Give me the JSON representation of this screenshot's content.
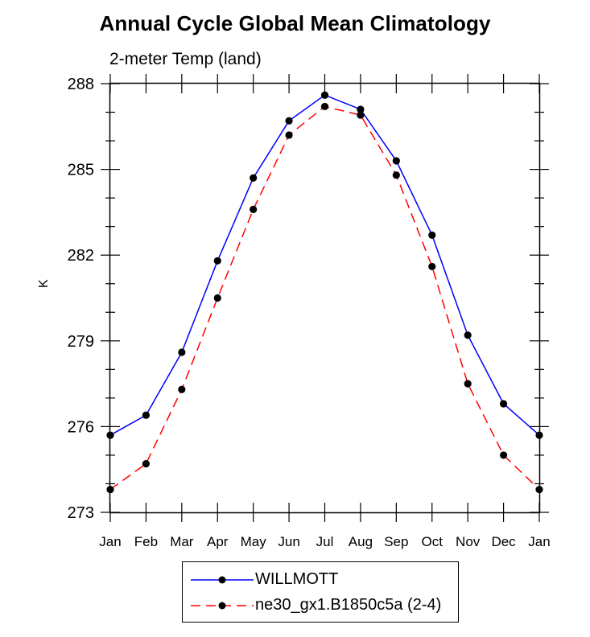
{
  "chart_data": {
    "type": "line",
    "title": "Annual Cycle Global Mean Climatology",
    "subtitle": "2-meter Temp (land)",
    "ylabel": "K",
    "xlabel": "",
    "categories": [
      "Jan",
      "Feb",
      "Mar",
      "Apr",
      "May",
      "Jun",
      "Jul",
      "Aug",
      "Sep",
      "Oct",
      "Nov",
      "Dec",
      "Jan"
    ],
    "ylim": [
      273,
      288
    ],
    "yticks": [
      "273",
      "276",
      "279",
      "282",
      "285",
      "288"
    ],
    "series": [
      {
        "name": "WILLMOTT",
        "color": "#0000ff",
        "dash": "solid",
        "values": [
          275.7,
          276.4,
          278.6,
          281.8,
          284.7,
          286.7,
          287.6,
          287.1,
          285.3,
          282.7,
          279.2,
          276.8,
          275.7
        ]
      },
      {
        "name": "ne30_gx1.B1850c5a (2-4)",
        "color": "#ff0000",
        "dash": "dashed",
        "values": [
          273.8,
          274.7,
          277.3,
          280.5,
          283.6,
          286.2,
          287.2,
          286.9,
          284.8,
          281.6,
          277.5,
          275.0,
          273.8
        ]
      }
    ],
    "legend": "bottom",
    "grid": false
  }
}
